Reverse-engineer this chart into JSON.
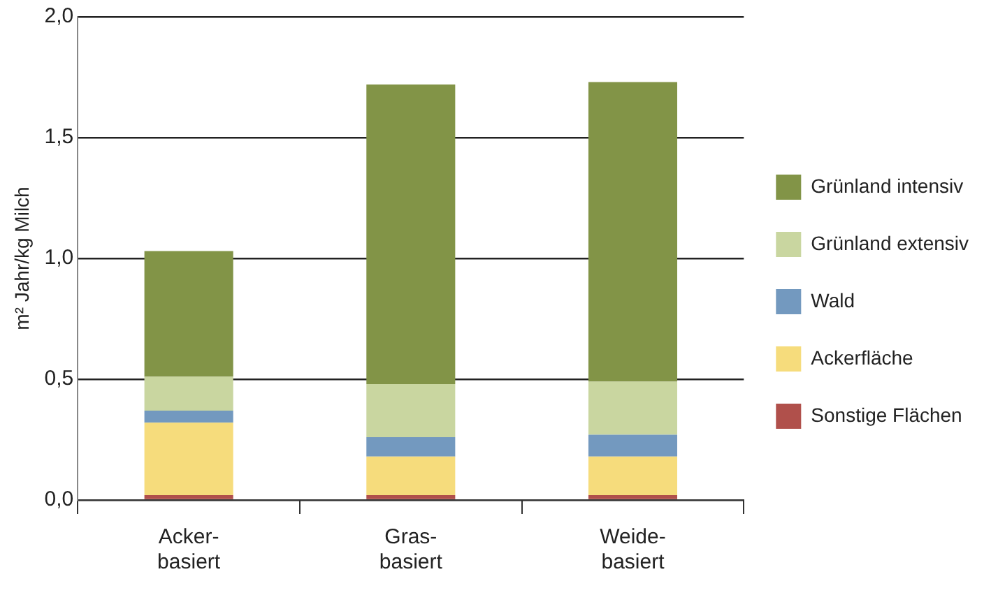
{
  "chart_data": {
    "type": "bar",
    "stacked": true,
    "ylabel": "m² Jahr/kg Milch",
    "categories": [
      "Acker-\nbasiert",
      "Gras-\nbasiert",
      "Weide-\nbasiert"
    ],
    "series": [
      {
        "name": "Sonstige Flächen",
        "color": "#b0504b",
        "values": [
          0.02,
          0.02,
          0.02
        ]
      },
      {
        "name": "Ackerfläche",
        "color": "#f6dc7c",
        "values": [
          0.3,
          0.16,
          0.16
        ]
      },
      {
        "name": "Wald",
        "color": "#7399bf",
        "values": [
          0.05,
          0.08,
          0.09
        ]
      },
      {
        "name": "Grünland extensiv",
        "color": "#c9d6a0",
        "values": [
          0.14,
          0.22,
          0.22
        ]
      },
      {
        "name": "Grünland intensiv",
        "color": "#829447",
        "values": [
          0.52,
          1.24,
          1.24
        ]
      }
    ],
    "ylim": [
      0,
      2
    ],
    "yticks": [
      {
        "value": 0,
        "label": "0,0"
      },
      {
        "value": 0.5,
        "label": "0,5"
      },
      {
        "value": 1,
        "label": "1,0"
      },
      {
        "value": 1.5,
        "label": "1,5"
      },
      {
        "value": 2,
        "label": "2,0"
      }
    ],
    "grid": "y",
    "legend": "right"
  }
}
